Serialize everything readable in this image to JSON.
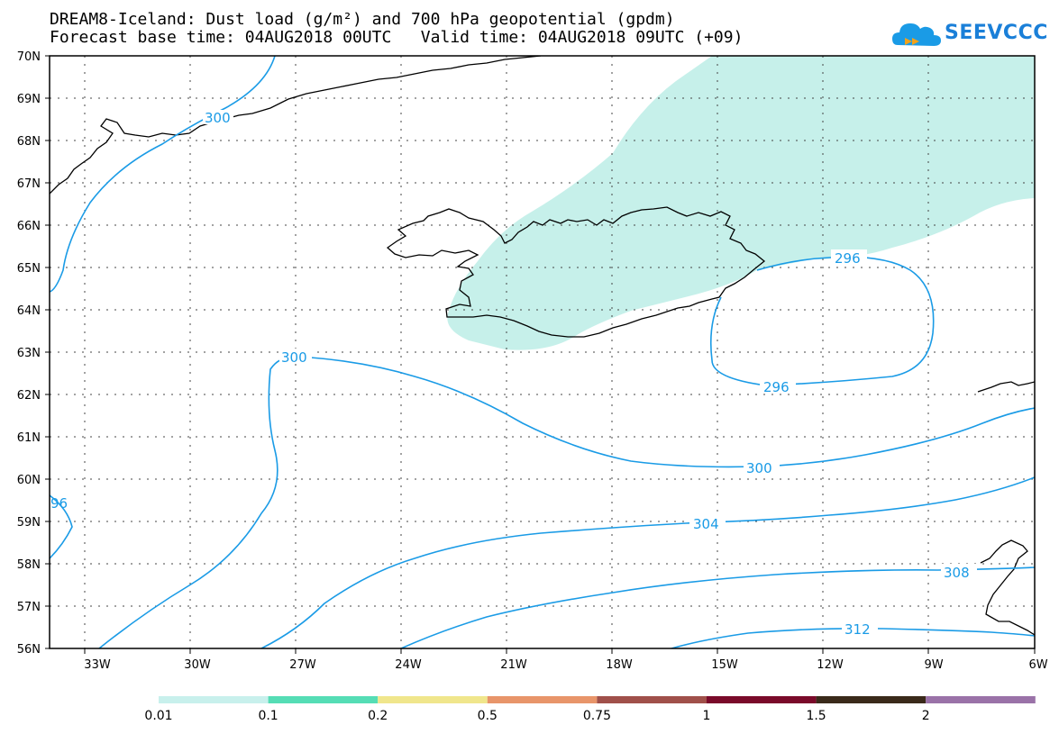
{
  "header": {
    "title_line1": "DREAM8-Iceland: Dust load (g/m²) and 700 hPa geopotential (gpdm)",
    "title_line2": "Forecast base time: 04AUG2018 00UTC   Valid time: 04AUG2018 09UTC (+09)"
  },
  "logo": {
    "text": "SEEVCCC",
    "icon": "cloud-icon"
  },
  "map_axes": {
    "lat_labels": [
      "70N",
      "69N",
      "68N",
      "67N",
      "66N",
      "65N",
      "64N",
      "63N",
      "62N",
      "61N",
      "60N",
      "59N",
      "58N",
      "57N",
      "56N"
    ],
    "lon_labels": [
      "33W",
      "30W",
      "27W",
      "24W",
      "21W",
      "18W",
      "15W",
      "12W",
      "9W",
      "6W"
    ]
  },
  "contours": {
    "labels": [
      "300",
      "300",
      "296",
      "296",
      "300",
      "304",
      "308",
      "312",
      "96"
    ]
  },
  "legend": {
    "colors": [
      "#c8f0ec",
      "#55ddb5",
      "#f0e68c",
      "#e8956a",
      "#a0504a",
      "#7a0a2a",
      "#3a2a1a",
      "#9a72a8"
    ],
    "labels": [
      "0.01",
      "0.1",
      "0.2",
      "0.5",
      "0.75",
      "1",
      "1.5",
      "2"
    ]
  }
}
